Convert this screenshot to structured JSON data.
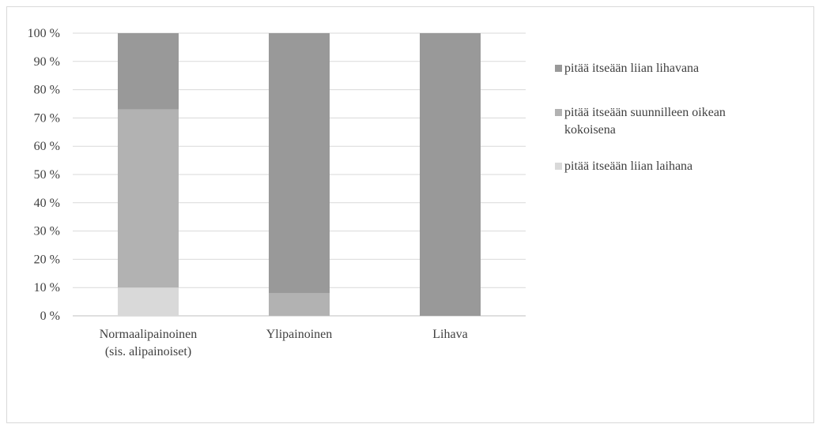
{
  "chart_data": {
    "type": "bar",
    "stacked": true,
    "categories": [
      [
        "Normaalipainoinen",
        "(sis. alipainoiset)"
      ],
      [
        "Ylipainoinen"
      ],
      [
        "Lihava"
      ]
    ],
    "series": [
      {
        "name": "pitää itseään liian laihana",
        "values": [
          10,
          0,
          0
        ],
        "color": "#d9d9d9"
      },
      {
        "name": "pitää itseään suunnilleen oikean kokoisena",
        "values": [
          63,
          8,
          0
        ],
        "color": "#b2b2b2"
      },
      {
        "name": "pitää itseään liian lihavana",
        "values": [
          27,
          92,
          100
        ],
        "color": "#999999"
      }
    ],
    "ylim": [
      0,
      100
    ],
    "yticks": [
      "0 %",
      "10 %",
      "20 %",
      "30 %",
      "40 %",
      "50 %",
      "60 %",
      "70 %",
      "80 %",
      "90 %",
      "100 %"
    ],
    "grid": true,
    "legend_position": "right"
  },
  "legend_order": [
    {
      "label": [
        "pitää itseään liian lihavana"
      ],
      "color": "#999999"
    },
    {
      "label": [
        "pitää itseään suunnilleen oikean",
        "kokoisena"
      ],
      "color": "#b2b2b2"
    },
    {
      "label": [
        "pitää itseään liian laihana"
      ],
      "color": "#d9d9d9"
    }
  ]
}
